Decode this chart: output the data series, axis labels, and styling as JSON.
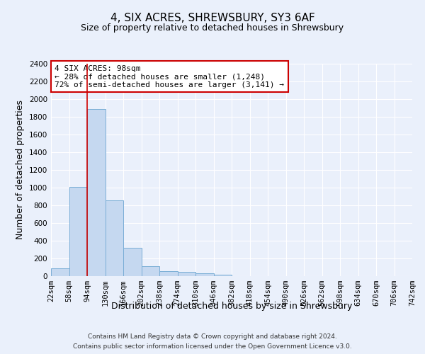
{
  "title": "4, SIX ACRES, SHREWSBURY, SY3 6AF",
  "subtitle": "Size of property relative to detached houses in Shrewsbury",
  "xlabel": "Distribution of detached houses by size in Shrewsbury",
  "ylabel": "Number of detached properties",
  "bin_edges": [
    22,
    58,
    94,
    130,
    166,
    202,
    238,
    274,
    310,
    346,
    382,
    418,
    454,
    490,
    526,
    562,
    598,
    634,
    670,
    706,
    742
  ],
  "bar_heights": [
    90,
    1010,
    1890,
    860,
    320,
    110,
    55,
    45,
    30,
    20,
    0,
    0,
    0,
    0,
    0,
    0,
    0,
    0,
    0,
    0
  ],
  "bar_color": "#c5d8f0",
  "bar_edgecolor": "#7aaed6",
  "vline_x": 94,
  "vline_color": "#cc0000",
  "ylim": [
    0,
    2400
  ],
  "yticks": [
    0,
    200,
    400,
    600,
    800,
    1000,
    1200,
    1400,
    1600,
    1800,
    2000,
    2200,
    2400
  ],
  "annotation_text": "4 SIX ACRES: 98sqm\n← 28% of detached houses are smaller (1,248)\n72% of semi-detached houses are larger (3,141) →",
  "annotation_box_color": "#ffffff",
  "annotation_border_color": "#cc0000",
  "footnote1": "Contains HM Land Registry data © Crown copyright and database right 2024.",
  "footnote2": "Contains public sector information licensed under the Open Government Licence v3.0.",
  "bg_color": "#eaf0fb",
  "plot_bg_color": "#eaf0fb",
  "grid_color": "#ffffff",
  "title_fontsize": 11,
  "subtitle_fontsize": 9,
  "ylabel_fontsize": 9,
  "xlabel_fontsize": 9,
  "tick_fontsize": 7.5,
  "footnote_fontsize": 6.5
}
